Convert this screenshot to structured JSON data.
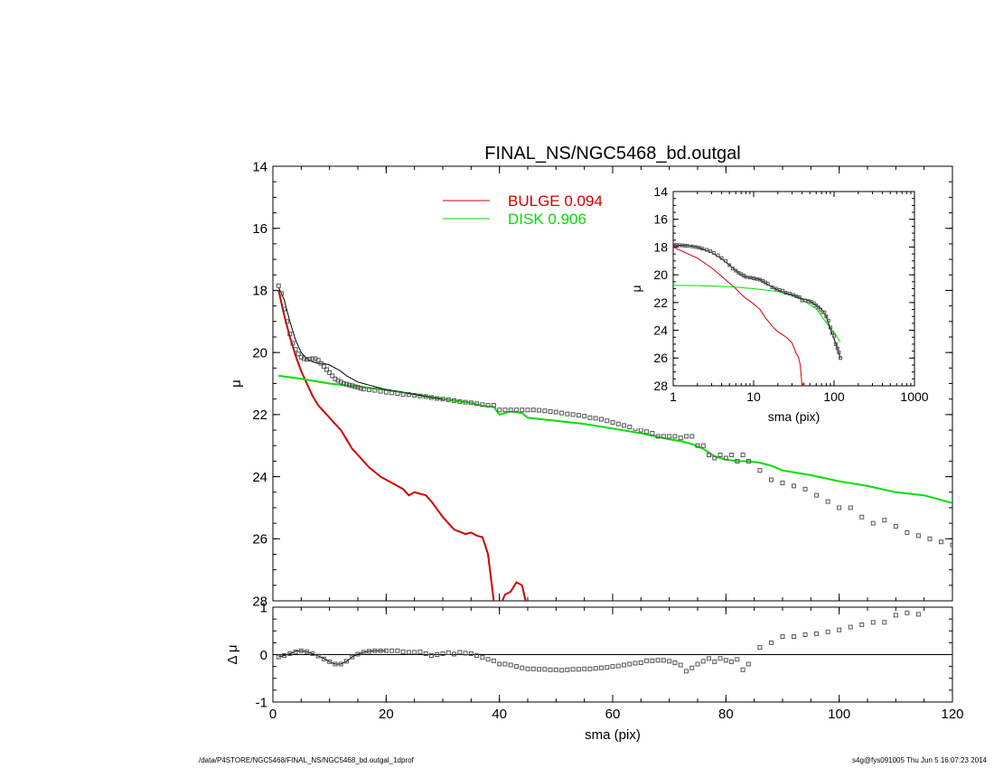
{
  "footer": {
    "left": "/data/P4STORE/NGC5468/FINAL_NS/NGC5468_bd.outgal_1dprof",
    "right": "s4g@fys091005  Thu Jun  5 16:07:23 2014"
  },
  "chart_data": [
    {
      "type": "line",
      "title": "FINAL_NS/NGC5468_bd.outgal",
      "xlabel": "",
      "ylabel": "μ",
      "xlim": [
        0,
        120
      ],
      "ylim": [
        28,
        14
      ],
      "y_inverted": true,
      "xticks": [
        0,
        20,
        40,
        60,
        80,
        100,
        120
      ],
      "yticks": [
        14,
        16,
        18,
        20,
        22,
        24,
        26,
        28
      ],
      "legend_placement": "top-center",
      "legend": [
        {
          "label": "BULGE  0.094",
          "color": "#d00000"
        },
        {
          "label": "DISK  0.906",
          "color": "#00e000"
        }
      ],
      "series": [
        {
          "name": "BULGE  0.094",
          "color": "#d00000",
          "style": "line",
          "x": [
            1,
            2,
            3,
            4,
            5,
            6,
            7,
            8,
            9,
            10,
            11,
            12,
            13,
            14,
            15,
            16,
            17,
            18,
            19,
            20,
            21,
            22,
            23,
            24,
            25,
            26,
            27,
            28,
            30,
            32,
            34,
            35,
            36,
            37,
            38,
            39,
            40,
            41,
            42,
            43,
            44,
            45
          ],
          "y": [
            18.0,
            18.8,
            19.5,
            20.1,
            20.6,
            21.0,
            21.4,
            21.7,
            21.9,
            22.1,
            22.3,
            22.5,
            22.8,
            23.1,
            23.3,
            23.5,
            23.7,
            23.85,
            24.0,
            24.1,
            24.2,
            24.3,
            24.4,
            24.6,
            24.5,
            24.55,
            24.6,
            24.8,
            25.3,
            25.7,
            25.85,
            25.8,
            25.9,
            25.95,
            26.5,
            28.0,
            28.2,
            27.8,
            27.7,
            27.4,
            27.5,
            28.3
          ]
        },
        {
          "name": "DISK  0.906",
          "color": "#00e000",
          "style": "line",
          "x": [
            1,
            5,
            10,
            15,
            20,
            25,
            30,
            35,
            37,
            39,
            40,
            41,
            42,
            44,
            45,
            50,
            55,
            60,
            65,
            70,
            72,
            74,
            76,
            78,
            80,
            82,
            84,
            86,
            88,
            90,
            95,
            100,
            105,
            110,
            115,
            120
          ],
          "y": [
            20.75,
            20.85,
            21.0,
            21.1,
            21.2,
            21.35,
            21.5,
            21.62,
            21.72,
            21.75,
            22.0,
            21.95,
            21.9,
            21.95,
            22.1,
            22.2,
            22.3,
            22.45,
            22.6,
            22.8,
            22.85,
            22.95,
            23.1,
            23.35,
            23.45,
            23.5,
            23.5,
            23.55,
            23.65,
            23.8,
            23.95,
            24.15,
            24.3,
            24.5,
            24.6,
            24.85
          ]
        },
        {
          "name": "",
          "color": "#000000",
          "style": "line",
          "x": [
            1,
            2,
            3,
            4,
            5,
            6,
            7,
            8,
            9,
            10,
            11,
            12,
            13,
            14,
            15,
            16,
            17,
            18,
            20,
            22,
            25,
            28,
            30
          ],
          "y": [
            17.9,
            18.3,
            19.0,
            19.6,
            20.0,
            20.2,
            20.3,
            20.35,
            20.35,
            20.4,
            20.5,
            20.6,
            20.75,
            20.85,
            20.95,
            21.0,
            21.05,
            21.1,
            21.2,
            21.25,
            21.35,
            21.45,
            21.5
          ]
        },
        {
          "name": "",
          "color": "#555555",
          "style": "markers",
          "x": [
            1,
            1.5,
            2,
            2.5,
            3,
            3.5,
            4,
            4.5,
            5,
            5.5,
            6,
            6.5,
            7,
            7.5,
            8,
            8.5,
            9,
            9.5,
            10,
            10.5,
            11,
            11.5,
            12,
            12.5,
            13,
            13.5,
            14,
            14.5,
            15,
            15.5,
            16,
            17,
            18,
            19,
            20,
            21,
            22,
            23,
            24,
            25,
            26,
            27,
            28,
            29,
            30,
            31,
            32,
            33,
            34,
            35,
            36,
            37,
            38,
            39,
            40,
            41,
            42,
            43,
            44,
            45,
            46,
            47,
            48,
            49,
            50,
            51,
            52,
            53,
            54,
            55,
            56,
            57,
            58,
            59,
            60,
            61,
            62,
            63,
            64,
            65,
            66,
            67,
            68,
            69,
            70,
            71,
            72,
            73,
            74,
            75,
            76,
            77,
            78,
            79,
            80,
            81,
            82,
            83,
            84,
            86,
            88,
            90,
            92,
            94,
            96,
            98,
            100,
            102,
            104,
            106,
            108,
            110,
            112,
            114,
            116,
            118,
            120
          ],
          "y": [
            17.85,
            18.1,
            18.6,
            19.0,
            19.4,
            19.7,
            19.9,
            20.05,
            20.15,
            20.2,
            20.22,
            20.22,
            20.2,
            20.2,
            20.25,
            20.35,
            20.45,
            20.55,
            20.65,
            20.75,
            20.85,
            20.9,
            20.95,
            21.0,
            21.02,
            21.05,
            21.07,
            21.1,
            21.12,
            21.15,
            21.18,
            21.2,
            21.22,
            21.25,
            21.28,
            21.3,
            21.32,
            21.35,
            21.35,
            21.38,
            21.4,
            21.42,
            21.45,
            21.48,
            21.5,
            21.52,
            21.55,
            21.58,
            21.6,
            21.62,
            21.65,
            21.68,
            21.7,
            21.7,
            21.85,
            21.85,
            21.85,
            21.85,
            21.85,
            21.85,
            21.85,
            21.86,
            21.88,
            21.9,
            21.92,
            21.95,
            21.98,
            22.0,
            22.02,
            22.05,
            22.1,
            22.12,
            22.15,
            22.2,
            22.25,
            22.3,
            22.35,
            22.4,
            22.45,
            22.5,
            22.55,
            22.6,
            22.7,
            22.7,
            22.7,
            22.7,
            22.75,
            22.7,
            22.7,
            23.0,
            23.0,
            23.3,
            23.4,
            23.3,
            23.4,
            23.3,
            23.5,
            23.3,
            23.5,
            23.8,
            24.1,
            24.2,
            24.3,
            24.4,
            24.6,
            24.8,
            25.0,
            25.0,
            25.3,
            25.5,
            25.4,
            25.6,
            25.8,
            25.9,
            26.0,
            26.1,
            26.2
          ]
        }
      ]
    },
    {
      "type": "scatter",
      "xlabel": "sma (pix)",
      "ylabel": "Δ μ",
      "xlim": [
        0,
        120
      ],
      "ylim": [
        -1,
        1
      ],
      "xticks": [
        0,
        20,
        40,
        60,
        80,
        100,
        120
      ],
      "yticks": [
        -1,
        0,
        1
      ],
      "reference_line_y": 0,
      "series": [
        {
          "name": "",
          "color": "#000000",
          "style": "line",
          "x": [
            1,
            2,
            3,
            4,
            5,
            6,
            7,
            8,
            9,
            10,
            11,
            12,
            13,
            14,
            15,
            16,
            17,
            18,
            19,
            20
          ],
          "y": [
            -0.05,
            -0.02,
            0.02,
            0.07,
            0.08,
            0.06,
            0.02,
            -0.03,
            -0.08,
            -0.15,
            -0.2,
            -0.2,
            -0.14,
            -0.05,
            0.01,
            0.05,
            0.07,
            0.08,
            0.08,
            0.08
          ]
        },
        {
          "name": "",
          "color": "#555555",
          "style": "markers",
          "x": [
            1,
            2,
            3,
            4,
            5,
            6,
            7,
            8,
            9,
            10,
            11,
            12,
            13,
            14,
            15,
            16,
            17,
            18,
            19,
            20,
            21,
            22,
            23,
            24,
            25,
            26,
            27,
            28,
            29,
            30,
            31,
            32,
            33,
            34,
            35,
            36,
            37,
            38,
            39,
            40,
            41,
            42,
            43,
            44,
            45,
            46,
            47,
            48,
            49,
            50,
            51,
            52,
            53,
            54,
            55,
            56,
            57,
            58,
            59,
            60,
            61,
            62,
            63,
            64,
            65,
            66,
            67,
            68,
            69,
            70,
            71,
            72,
            73,
            74,
            75,
            76,
            77,
            78,
            79,
            80,
            81,
            82,
            83,
            84,
            86,
            88,
            90,
            92,
            94,
            96,
            98,
            100,
            102,
            104,
            106,
            108,
            110,
            112,
            114
          ],
          "y": [
            -0.05,
            -0.02,
            0.02,
            0.06,
            0.08,
            0.06,
            0.02,
            -0.03,
            -0.09,
            -0.15,
            -0.2,
            -0.2,
            -0.14,
            -0.05,
            0.01,
            0.05,
            0.07,
            0.08,
            0.08,
            0.08,
            0.08,
            0.08,
            0.06,
            0.05,
            0.05,
            0.06,
            0.02,
            -0.02,
            0.0,
            0.02,
            0.04,
            0.01,
            0.05,
            0.03,
            0.02,
            -0.02,
            -0.06,
            -0.1,
            -0.13,
            -0.2,
            -0.2,
            -0.22,
            -0.25,
            -0.28,
            -0.3,
            -0.3,
            -0.31,
            -0.31,
            -0.32,
            -0.32,
            -0.33,
            -0.32,
            -0.31,
            -0.31,
            -0.3,
            -0.3,
            -0.29,
            -0.28,
            -0.27,
            -0.25,
            -0.24,
            -0.22,
            -0.2,
            -0.18,
            -0.17,
            -0.13,
            -0.13,
            -0.12,
            -0.12,
            -0.14,
            -0.17,
            -0.22,
            -0.35,
            -0.28,
            -0.2,
            -0.14,
            -0.08,
            -0.15,
            -0.08,
            -0.12,
            -0.15,
            -0.1,
            -0.32,
            -0.2,
            0.15,
            0.25,
            0.38,
            0.38,
            0.42,
            0.44,
            0.48,
            0.52,
            0.58,
            0.63,
            0.68,
            0.68,
            0.83,
            0.88,
            0.85
          ]
        }
      ]
    },
    {
      "type": "line",
      "xlabel": "sma (pix)",
      "ylabel": "μ",
      "xscale": "log",
      "xlim": [
        1,
        1000
      ],
      "ylim": [
        28,
        14
      ],
      "y_inverted": true,
      "xticks": [
        1,
        10,
        100,
        1000
      ],
      "xtick_labels": [
        "1",
        "10",
        "100",
        "1000"
      ],
      "yticks": [
        14,
        16,
        18,
        20,
        22,
        24,
        26,
        28
      ],
      "series": [
        {
          "name": "",
          "color": "#d00000",
          "style": "line",
          "x": [
            1,
            2,
            3,
            4,
            5,
            6,
            7,
            8,
            9,
            10,
            12,
            14,
            16,
            18,
            20,
            24,
            26,
            30,
            34,
            36,
            38,
            40,
            42,
            44
          ],
          "y": [
            18.0,
            18.8,
            19.5,
            20.1,
            20.6,
            21.0,
            21.4,
            21.7,
            21.9,
            22.1,
            22.5,
            23.1,
            23.5,
            23.85,
            24.1,
            24.4,
            24.55,
            24.9,
            25.7,
            25.9,
            26.5,
            28.0,
            27.8,
            28.3
          ]
        },
        {
          "name": "",
          "color": "#00e000",
          "style": "line",
          "x": [
            1,
            2,
            5,
            10,
            20,
            30,
            40,
            60,
            80,
            100,
            120
          ],
          "y": [
            20.75,
            20.78,
            20.85,
            21.0,
            21.2,
            21.5,
            21.8,
            22.45,
            23.45,
            24.15,
            24.85
          ]
        },
        {
          "name": "",
          "color": "#000000",
          "style": "line",
          "x": [
            1,
            1.5,
            2,
            3,
            4,
            5,
            6,
            7,
            8,
            10,
            12,
            15,
            20,
            25,
            30,
            40,
            50,
            60,
            70,
            80,
            90,
            100,
            110,
            120
          ],
          "y": [
            17.85,
            17.9,
            18.0,
            18.4,
            18.85,
            19.3,
            19.7,
            20.0,
            20.15,
            20.25,
            20.35,
            20.7,
            21.1,
            21.3,
            21.45,
            21.7,
            21.9,
            22.2,
            22.5,
            23.0,
            23.9,
            24.6,
            25.3,
            26.0
          ]
        },
        {
          "name": "",
          "color": "#555555",
          "style": "markers",
          "x": [
            1,
            1.1,
            1.2,
            1.3,
            1.4,
            1.5,
            1.7,
            1.9,
            2.1,
            2.3,
            2.6,
            2.9,
            3.2,
            3.6,
            4,
            4.5,
            5,
            5.5,
            6,
            6.5,
            7,
            7.5,
            8,
            9,
            10,
            11,
            12,
            13,
            14,
            15,
            17,
            19,
            21,
            23,
            25,
            28,
            31,
            34,
            37,
            40,
            44,
            48,
            52,
            56,
            60,
            64,
            68,
            72,
            76,
            80,
            85,
            90,
            95,
            100,
            105,
            110,
            115,
            120
          ],
          "y": [
            17.85,
            17.85,
            17.87,
            17.88,
            17.9,
            17.92,
            17.95,
            18.0,
            18.05,
            18.12,
            18.2,
            18.3,
            18.42,
            18.6,
            18.8,
            19.0,
            19.3,
            19.55,
            19.7,
            19.85,
            19.95,
            20.05,
            20.15,
            20.2,
            20.25,
            20.3,
            20.35,
            20.45,
            20.55,
            20.65,
            20.9,
            21.0,
            21.1,
            21.15,
            21.3,
            21.35,
            21.45,
            21.55,
            21.62,
            21.85,
            21.85,
            21.9,
            21.95,
            22.05,
            22.2,
            22.35,
            22.5,
            22.7,
            22.7,
            23.0,
            23.3,
            23.8,
            24.2,
            24.4,
            25.0,
            25.3,
            25.6,
            26.0
          ]
        }
      ]
    }
  ]
}
